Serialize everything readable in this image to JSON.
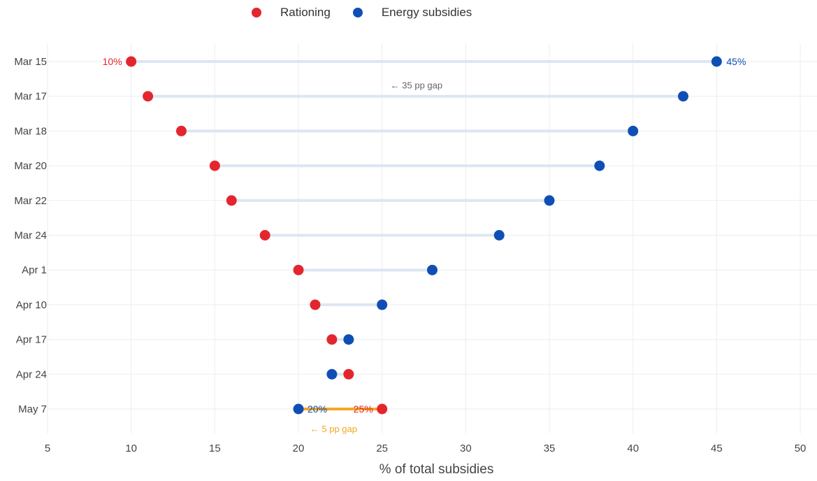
{
  "chart_data": {
    "type": "dumbbell",
    "title": "",
    "xlabel": "% of total subsidies",
    "ylabel": "",
    "xlim": [
      5,
      51
    ],
    "x_ticks": [
      5,
      10,
      15,
      20,
      25,
      30,
      35,
      40,
      45,
      50
    ],
    "grid": true,
    "legend_position": "top-center",
    "categories": [
      "Mar 15",
      "Mar 17",
      "Mar 18",
      "Mar 20",
      "Mar 22",
      "Mar 24",
      "Apr 1",
      "Apr 10",
      "Apr 17",
      "Apr 24",
      "May 7"
    ],
    "series": [
      {
        "name": "Rationing",
        "color": "#e3262d",
        "values": [
          10,
          11,
          13,
          15,
          16,
          18,
          20,
          21,
          22,
          23,
          25
        ]
      },
      {
        "name": "Energy subsidies",
        "color": "#0f4fb5",
        "values": [
          45,
          43,
          40,
          38,
          35,
          32,
          28,
          25,
          23,
          22,
          20
        ]
      }
    ],
    "data_labels": [
      {
        "category": "Mar 15",
        "series": "Rationing",
        "text": "10%"
      },
      {
        "category": "Mar 15",
        "series": "Energy subsidies",
        "text": "45%"
      },
      {
        "category": "May 7",
        "series": "Energy subsidies",
        "text": "20%"
      },
      {
        "category": "May 7",
        "series": "Rationing",
        "text": "25%"
      }
    ],
    "annotations": [
      {
        "text": "← 35 pp gap",
        "x": 25.5,
        "category": "Mar 17",
        "color": "#666666"
      },
      {
        "text": "← 5 pp gap",
        "x": 20.7,
        "category": "May 7",
        "color": "#f5a623"
      }
    ],
    "connector_color": "#dde6f2",
    "highlight_connector_color": "#f5a623"
  }
}
